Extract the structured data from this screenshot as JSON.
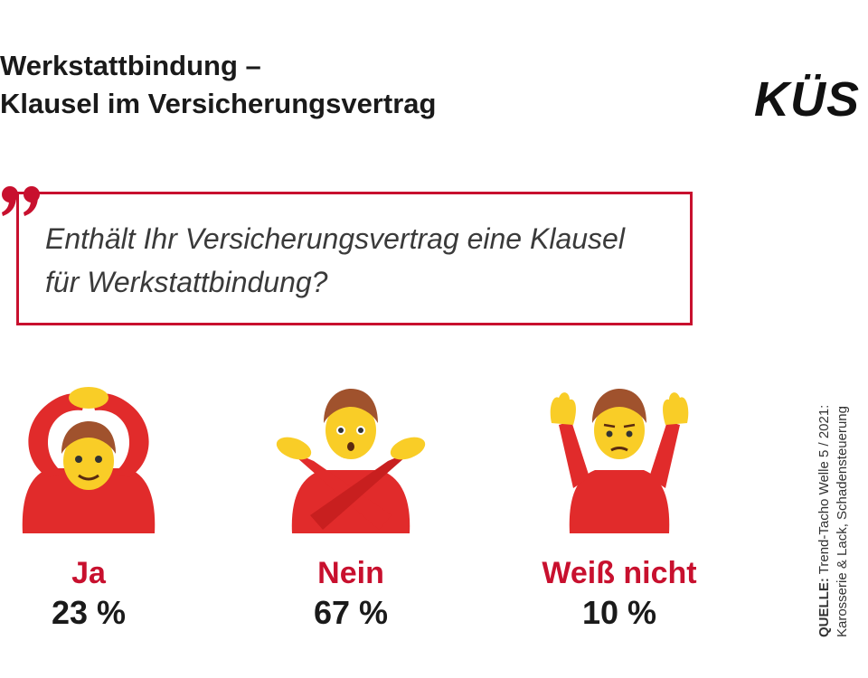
{
  "title": {
    "line1": "Werkstattbindung –",
    "line2": "Klausel im Versicherungsvertrag"
  },
  "logo": "KÜS",
  "question": {
    "line1": "Enthält Ihr Versicherungsvertrag eine Klausel",
    "line2": "für Werkstattbindung?"
  },
  "source": {
    "label": "QUELLE:",
    "text": "Trend-Tacho Welle 5 / 2021:",
    "line2": "Karosserie & Lack, Schadensteuerung"
  },
  "colors": {
    "accent": "#c8102e",
    "text": "#1a1a1a",
    "shirt": "#e12b2b",
    "skin": "#f9cd27",
    "hair": "#a0522d"
  },
  "chart_data": {
    "type": "table",
    "title": "Werkstattbindung – Klausel im Versicherungsvertrag",
    "question": "Enthält Ihr Versicherungsvertrag eine Klausel für Werkstattbindung?",
    "categories": [
      "Ja",
      "Nein",
      "Weiß nicht"
    ],
    "values": [
      23,
      67,
      10
    ],
    "unit": "%",
    "value_labels": [
      "23 %",
      "67 %",
      "10 %"
    ],
    "icons": [
      "person-ok-gesture-icon",
      "person-no-gesture-icon",
      "person-shrug-icon"
    ]
  }
}
